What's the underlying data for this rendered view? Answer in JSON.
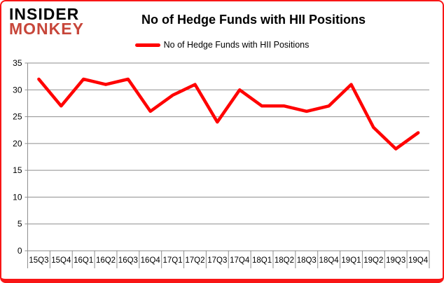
{
  "logo": {
    "line1": "INSIDER",
    "line2": "MONKEY",
    "line2_color": "#c7463a"
  },
  "header": {
    "title": "No of Hedge Funds with HII Positions"
  },
  "legend": {
    "label": "No of Hedge Funds with HII Positions"
  },
  "frame": {
    "border_color": "#f81616"
  },
  "chart_data": {
    "type": "line",
    "title": "No of Hedge Funds with HII Positions",
    "categories": [
      "15Q3",
      "15Q4",
      "16Q1",
      "16Q2",
      "16Q3",
      "16Q4",
      "17Q1",
      "17Q2",
      "17Q3",
      "17Q4",
      "18Q1",
      "18Q2",
      "18Q3",
      "18Q4",
      "19Q1",
      "19Q2",
      "19Q3",
      "19Q4"
    ],
    "series": [
      {
        "name": "No of Hedge Funds with HII Positions",
        "color": "#ff0000",
        "values": [
          32,
          27,
          32,
          31,
          32,
          26,
          29,
          31,
          24,
          30,
          27,
          27,
          26,
          27,
          31,
          23,
          19,
          22
        ]
      }
    ],
    "xlabel": "",
    "ylabel": "",
    "ylim": [
      0,
      35
    ],
    "yticks": [
      0,
      5,
      10,
      15,
      20,
      25,
      30,
      35
    ],
    "grid": true,
    "legend_position": "top",
    "grid_color": "#8e8e8e",
    "axis_color": "#8e8e8e",
    "text_color": "#000000"
  }
}
